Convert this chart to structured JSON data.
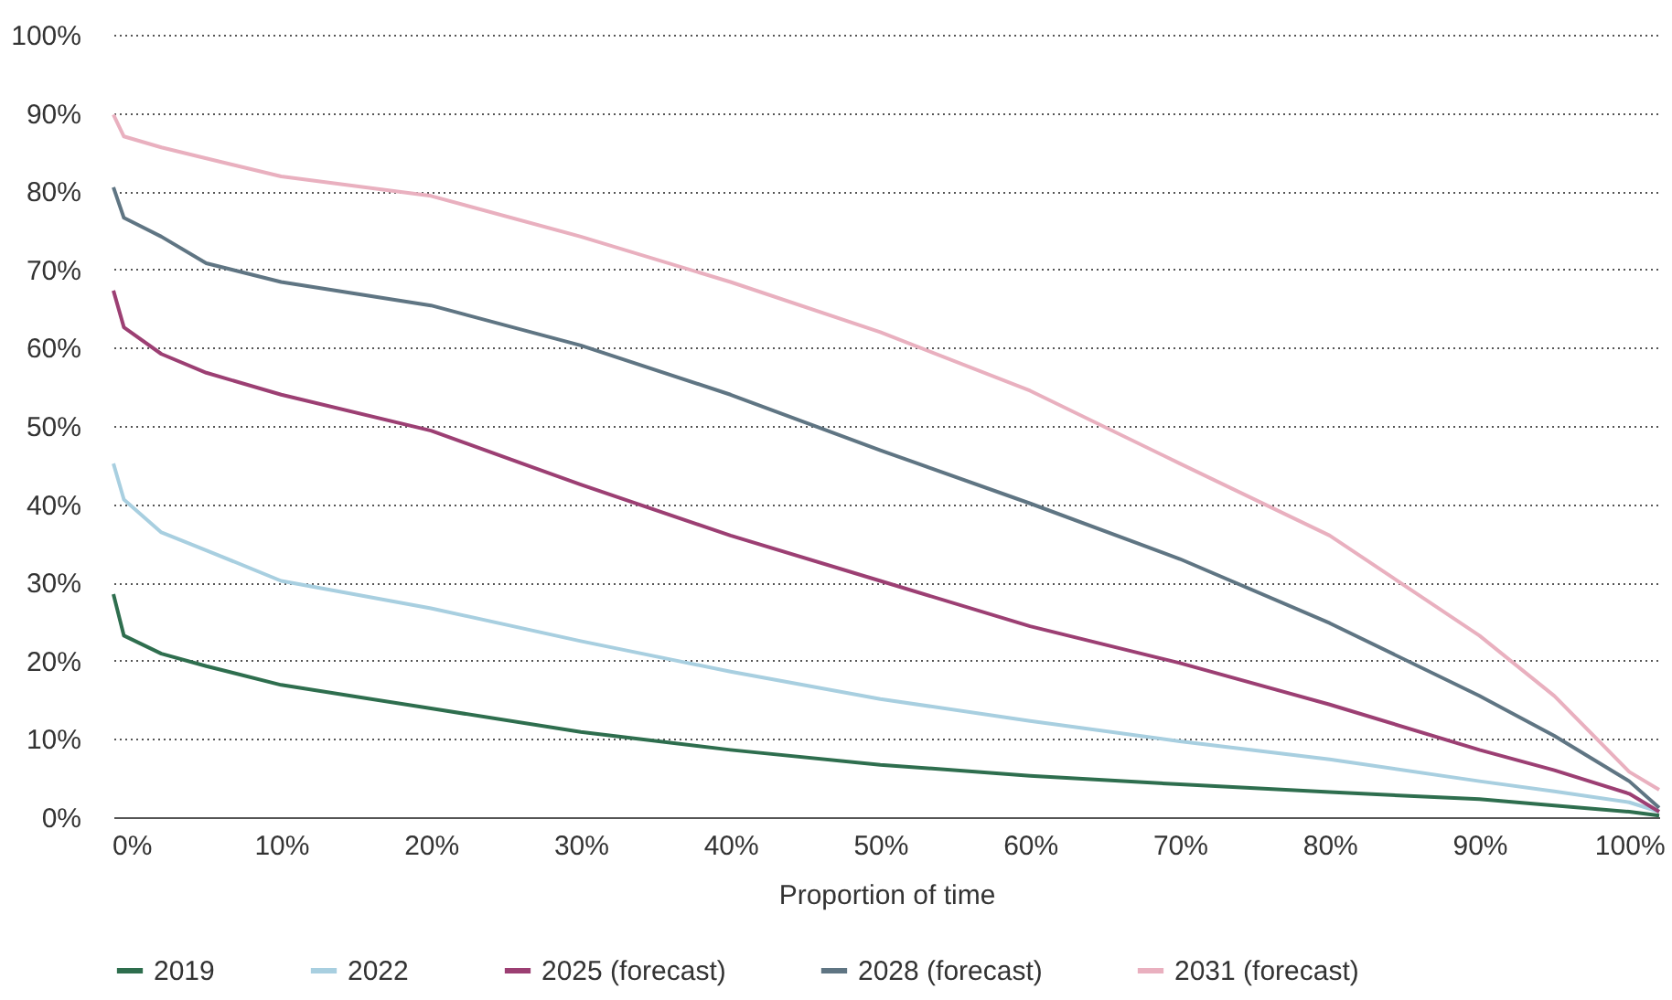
{
  "chart_data": {
    "type": "line",
    "xlabel": "Proportion of time",
    "x": [
      -1.2,
      -0.5,
      2,
      5,
      10,
      20,
      30,
      40,
      50,
      60,
      70,
      80,
      90,
      95,
      100,
      102
    ],
    "series": [
      {
        "name": "2019",
        "color": "#2e6e4e",
        "values": [
          28.5,
          23.2,
          20.9,
          19.3,
          16.9,
          13.9,
          10.9,
          8.6,
          6.7,
          5.3,
          4.2,
          3.2,
          2.3,
          1.5,
          0.7,
          0.2
        ]
      },
      {
        "name": "2022",
        "color": "#a8cfe0",
        "values": [
          45.2,
          40.6,
          36.4,
          34.1,
          30.2,
          26.7,
          22.5,
          18.6,
          15.1,
          12.3,
          9.7,
          7.4,
          4.6,
          3.3,
          1.9,
          0.7
        ]
      },
      {
        "name": "2025 (forecast)",
        "color": "#9c3f73",
        "values": [
          67.3,
          62.6,
          59.2,
          56.8,
          54,
          49.4,
          42.5,
          36,
          30.2,
          24.4,
          19.7,
          14.4,
          8.6,
          6,
          3,
          0.7
        ]
      },
      {
        "name": "2028 (forecast)",
        "color": "#5f7583",
        "values": [
          80.5,
          76.6,
          74.2,
          70.8,
          68.4,
          65.4,
          60.3,
          54,
          46.9,
          40.1,
          33,
          24.8,
          15.5,
          10.4,
          4.6,
          1.2
        ]
      },
      {
        "name": "2031 (forecast)",
        "color": "#e9b0bf",
        "values": [
          89.8,
          87,
          85.6,
          84.2,
          81.9,
          79.4,
          74.2,
          68.4,
          62,
          54.5,
          45.2,
          36,
          23.2,
          15.5,
          5.8,
          3.5
        ]
      }
    ],
    "xlim": [
      -1.2,
      102
    ],
    "xticks": [
      {
        "value": 0,
        "label": "0%"
      },
      {
        "value": 10,
        "label": "10%"
      },
      {
        "value": 20,
        "label": "20%"
      },
      {
        "value": 30,
        "label": "30%"
      },
      {
        "value": 40,
        "label": "40%"
      },
      {
        "value": 50,
        "label": "50%"
      },
      {
        "value": 60,
        "label": "60%"
      },
      {
        "value": 70,
        "label": "70%"
      },
      {
        "value": 80,
        "label": "80%"
      },
      {
        "value": 90,
        "label": "90%"
      },
      {
        "value": 100,
        "label": "100%"
      }
    ],
    "ylim": [
      0,
      100
    ],
    "yticks": [
      {
        "value": 0,
        "label": "0%"
      },
      {
        "value": 10,
        "label": "10%"
      },
      {
        "value": 20,
        "label": "20%"
      },
      {
        "value": 30,
        "label": "30%"
      },
      {
        "value": 40,
        "label": "40%"
      },
      {
        "value": 50,
        "label": "50%"
      },
      {
        "value": 60,
        "label": "60%"
      },
      {
        "value": 70,
        "label": "70%"
      },
      {
        "value": 80,
        "label": "80%"
      },
      {
        "value": 90,
        "label": "90%"
      },
      {
        "value": 100,
        "label": "100%"
      }
    ],
    "grid": "y",
    "legend": "bottom",
    "marker": "none",
    "line_style": "solid"
  }
}
